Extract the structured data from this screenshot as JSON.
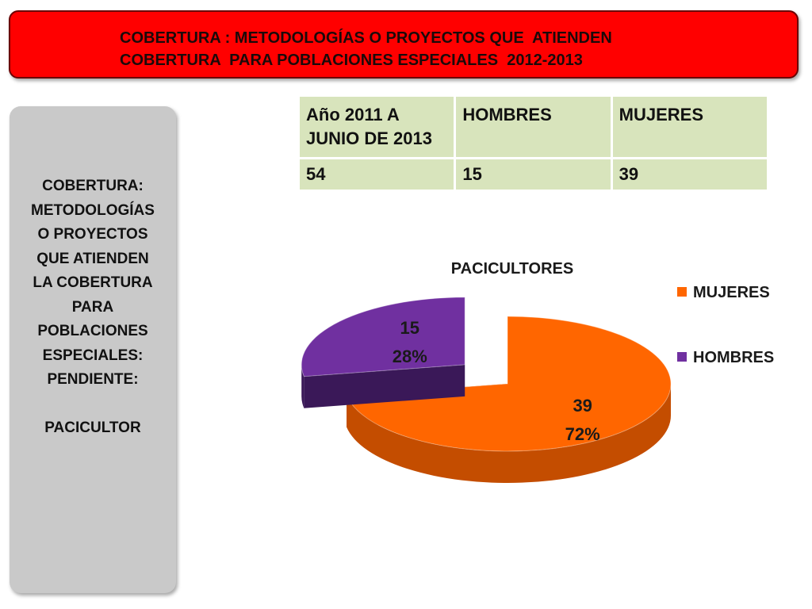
{
  "header": {
    "title": "COBERTURA : METODOLOGÍAS O PROYECTOS QUE  ATIENDEN\nCOBERTURA  PARA POBLACIONES ESPECIALES  2012-2013",
    "background_color": "#ff0000"
  },
  "sidebar": {
    "text": "COBERTURA:\nMETODOLOGÍAS\nO PROYECTOS\nQUE ATIENDEN\nLA COBERTURA\nPARA\nPOBLACIONES\nESPECIALES:\nPENDIENTE:\n\nPACICULTOR"
  },
  "summary_table": {
    "headers": [
      "Año 2011 A JUNIO DE 2013",
      "HOMBRES",
      "MUJERES"
    ],
    "row": [
      "54",
      "15",
      "39"
    ]
  },
  "chart_data": {
    "type": "pie",
    "title": "PACICULTORES",
    "slices": [
      {
        "name": "MUJERES",
        "value": 39,
        "percent": "72%",
        "color": "#ff6600",
        "side_color": "#c44d00"
      },
      {
        "name": "HOMBRES",
        "value": 15,
        "percent": "28%",
        "color": "#7030a0",
        "side_color": "#3a1858",
        "exploded": true
      }
    ],
    "legend": {
      "placement": "right",
      "entries": [
        "MUJERES",
        "HOMBRES"
      ]
    },
    "style": "3d"
  }
}
